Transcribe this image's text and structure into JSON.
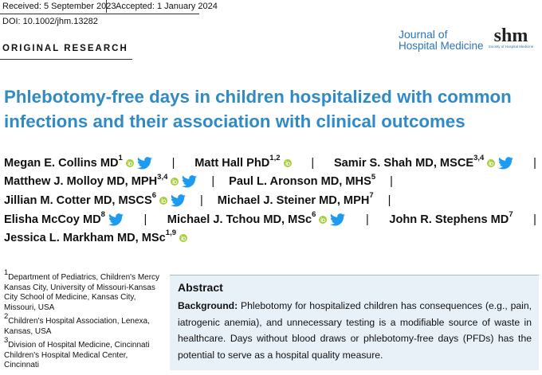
{
  "header": {
    "received": "Received: 5 September 2023",
    "accepted": "Accepted: 1 January 2024",
    "doi": "DOI: 10.1002/jhm.13282",
    "journal_logo": {
      "line1": "Journal of",
      "line2": "Hospital Medicine",
      "society_mark": "shm",
      "society_name": "Society of Hospital Medicine"
    },
    "section": "ORIGINAL RESEARCH"
  },
  "title": "Phlebotomy-free days in children hospitalized with common infections and their association with clinical outcomes",
  "separator": "|",
  "authors": {
    "lines": [
      [
        {
          "name": "Megan E. Collins MD",
          "sup": "1",
          "orcid": true,
          "twitter": true
        },
        {
          "name": "Matt Hall PhD",
          "sup": "1,2",
          "orcid": true,
          "twitter": false
        },
        {
          "name": "Samir S. Shah MD, MSCE",
          "sup": "3,4",
          "orcid": true,
          "twitter": true
        }
      ],
      [
        {
          "name": "Matthew J. Molloy MD, MPH",
          "sup": "3,4",
          "orcid": true,
          "twitter": true
        },
        {
          "name": "Paul L. Aronson MD, MHS",
          "sup": "5",
          "orcid": false,
          "twitter": false
        }
      ],
      [
        {
          "name": "Jillian M. Cotter MD, MSCS",
          "sup": "6",
          "orcid": true,
          "twitter": true
        },
        {
          "name": "Michael J. Steiner MD, MPH",
          "sup": "7",
          "orcid": false,
          "twitter": false
        }
      ],
      [
        {
          "name": "Elisha McCoy MD",
          "sup": "8",
          "orcid": false,
          "twitter": true
        },
        {
          "name": "Michael J. Tchou MD, MSc",
          "sup": "6",
          "orcid": true,
          "twitter": true
        },
        {
          "name": "John R. Stephens MD",
          "sup": "7",
          "orcid": false,
          "twitter": false
        }
      ],
      [
        {
          "name": "Jessica L. Markham MD, MSc",
          "sup": "1,9",
          "orcid": true,
          "twitter": false
        }
      ]
    ]
  },
  "affiliations": [
    {
      "number": "1",
      "text": "Department of Pediatrics, Children's Mercy Kansas City, University of Missouri-Kansas City School of Medicine, Kansas City, Missouri, USA"
    },
    {
      "number": "2",
      "text": "Children's Hospital Association, Lenexa, Kansas, USA"
    },
    {
      "number": "3",
      "text": "Division of Hospital Medicine, Cincinnati Children's Hospital Medical Center, Cincinnati"
    }
  ],
  "abstract": {
    "heading": "Abstract",
    "background_label": "Background:",
    "background_text": "Phlebotomy for hospitalized children has consequences (e.g., pain, iatrogenic anemia), and unnecessary testing is a modifiable source of waste in healthcare. Days without blood draws or phlebotomy-free days (PFDs) has the potential to serve as a hospital quality measure."
  }
}
